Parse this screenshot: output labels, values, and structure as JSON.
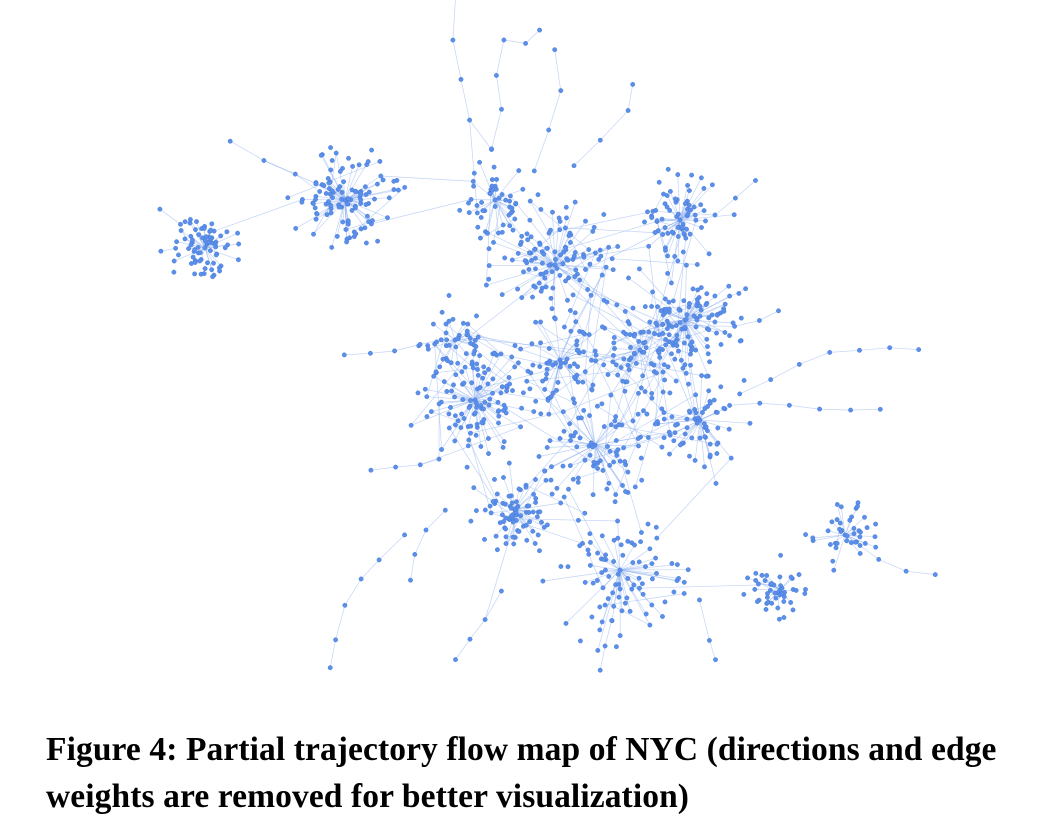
{
  "figure": {
    "caption": "Figure 4: Partial trajectory flow map of NYC (directions and edge weights are removed for better visualization)",
    "colors": {
      "node": "#5b8fe8",
      "node_stroke": "#3f74d6",
      "edge": "#8fb0ee"
    }
  }
}
